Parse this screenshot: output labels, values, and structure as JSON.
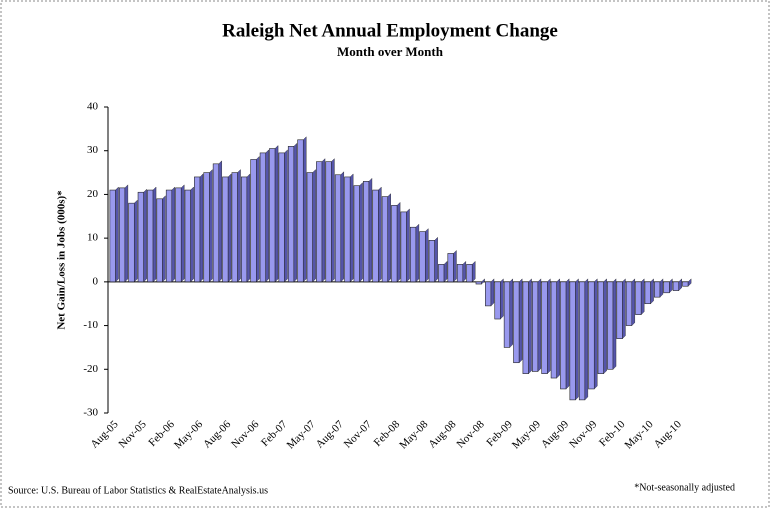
{
  "chart_data": {
    "type": "bar",
    "title": "Raleigh Net Annual Employment Change",
    "subtitle": "Month over Month",
    "y_label": "Net Gain/Loss in Jobs (000s)*",
    "source": "Source: U.S. Bureau of Labor Statistics & RealEstateAnalysis.us",
    "note": "*Not-seasonally adjusted",
    "categories": [
      "Aug-05",
      null,
      null,
      "Nov-05",
      null,
      null,
      "Feb-06",
      null,
      null,
      "May-06",
      null,
      null,
      "Aug-06",
      null,
      null,
      "Nov-06",
      null,
      null,
      "Feb-07",
      null,
      null,
      "May-07",
      null,
      null,
      "Aug-07",
      null,
      null,
      "Nov-07",
      null,
      null,
      "Feb-08",
      null,
      null,
      "May-08",
      null,
      null,
      "Aug-08",
      null,
      null,
      "Nov-08",
      null,
      null,
      "Feb-09",
      null,
      null,
      "May-09",
      null,
      null,
      "Aug-09",
      null,
      null,
      "Nov-09",
      null,
      null,
      "Feb-10",
      null,
      null,
      "May-10",
      null,
      null,
      "Aug-10",
      null
    ],
    "values": [
      21,
      21.5,
      18,
      20.5,
      21,
      19,
      21,
      21.5,
      21,
      24,
      25,
      27,
      24,
      25,
      24,
      28,
      29.5,
      30.5,
      29.5,
      31,
      32.5,
      25,
      27.5,
      27.5,
      24.5,
      24,
      22,
      23,
      21,
      19.5,
      17.5,
      16,
      12.5,
      11.5,
      9.5,
      4,
      6.5,
      4,
      4,
      -0.5,
      -5.5,
      -8.5,
      -15,
      -18.5,
      -21,
      -20.5,
      -21,
      -22,
      -24.5,
      -27,
      -27,
      -24.5,
      -21,
      -20,
      -13,
      -10,
      -7.5,
      -5,
      -3.5,
      -2.5,
      -2,
      -1
    ],
    "color": "#9999ee",
    "ylim": [
      -30,
      40
    ],
    "yticks": [
      -30,
      -20,
      -10,
      0,
      10,
      20,
      30,
      40
    ],
    "grid": false
  }
}
